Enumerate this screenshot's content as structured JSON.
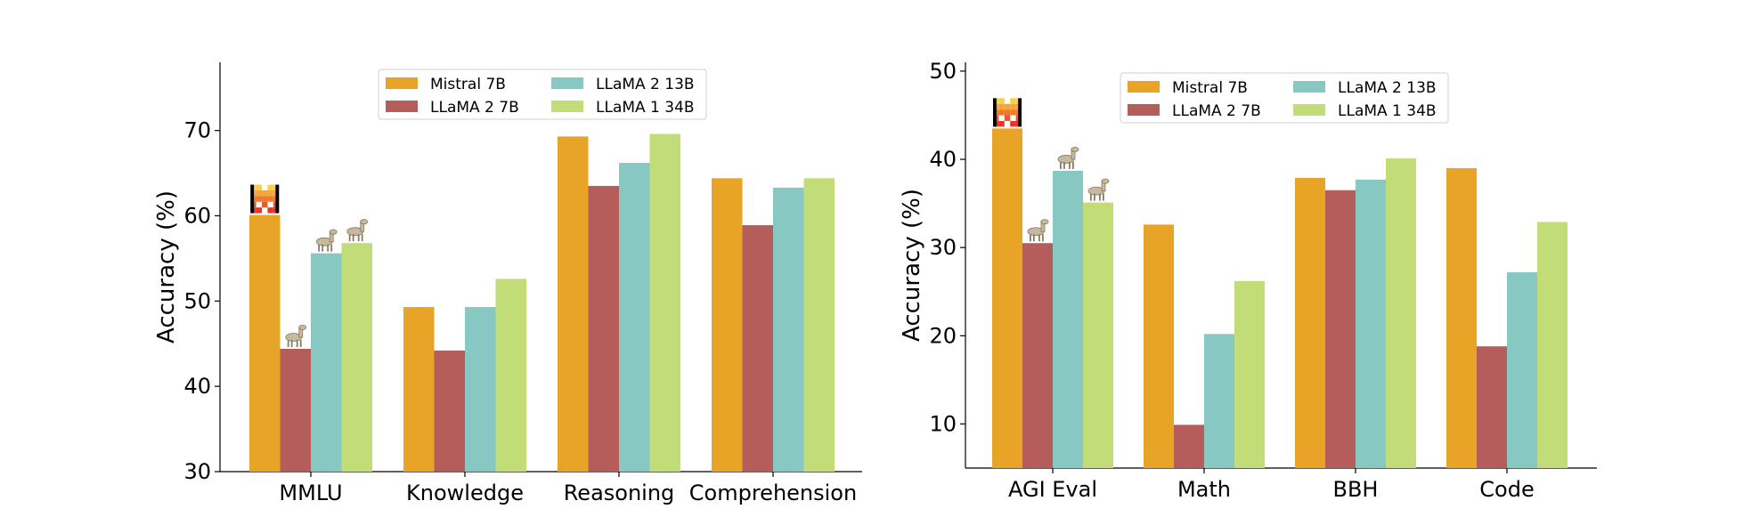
{
  "chart_data": [
    {
      "type": "bar",
      "categories": [
        "MMLU",
        "Knowledge",
        "Reasoning",
        "Comprehension"
      ],
      "ylabel": "Accuracy (%)",
      "xlabel": "",
      "ylim": [
        30,
        78
      ],
      "yticks": [
        30,
        40,
        50,
        60,
        70
      ],
      "legend_position": "top-center",
      "series": [
        {
          "name": "Mistral 7B",
          "color": "#E8A427",
          "values": [
            60.1,
            49.3,
            69.3,
            64.4
          ]
        },
        {
          "name": "LLaMA 2 7B",
          "color": "#B55D5B",
          "values": [
            44.4,
            44.2,
            63.5,
            58.9
          ]
        },
        {
          "name": "LLaMA 2 13B",
          "color": "#88C8C2",
          "values": [
            55.6,
            49.3,
            66.2,
            63.3
          ]
        },
        {
          "name": "LLaMA 1 34B",
          "color": "#C2DC77",
          "values": [
            56.8,
            52.6,
            69.6,
            64.4
          ]
        }
      ],
      "icons": [
        {
          "category": "MMLU",
          "series": "Mistral 7B",
          "icon": "mistral-logo-icon"
        },
        {
          "category": "MMLU",
          "series": "LLaMA 2 7B",
          "icon": "llama-icon"
        },
        {
          "category": "MMLU",
          "series": "LLaMA 2 13B",
          "icon": "llama-icon"
        },
        {
          "category": "MMLU",
          "series": "LLaMA 1 34B",
          "icon": "llama-icon"
        }
      ]
    },
    {
      "type": "bar",
      "categories": [
        "AGI Eval",
        "Math",
        "BBH",
        "Code"
      ],
      "ylabel": "Accuracy (%)",
      "xlabel": "",
      "ylim": [
        5,
        51
      ],
      "yticks": [
        10,
        20,
        30,
        40,
        50
      ],
      "legend_position": "top-center",
      "series": [
        {
          "name": "Mistral 7B",
          "color": "#E8A427",
          "values": [
            43.5,
            32.6,
            37.9,
            39.0
          ]
        },
        {
          "name": "LLaMA 2 7B",
          "color": "#B55D5B",
          "values": [
            30.5,
            9.9,
            36.5,
            18.8
          ]
        },
        {
          "name": "LLaMA 2 13B",
          "color": "#88C8C2",
          "values": [
            38.7,
            20.2,
            37.7,
            27.2
          ]
        },
        {
          "name": "LLaMA 1 34B",
          "color": "#C2DC77",
          "values": [
            35.1,
            26.2,
            40.1,
            32.9
          ]
        }
      ],
      "icons": [
        {
          "category": "AGI Eval",
          "series": "Mistral 7B",
          "icon": "mistral-logo-icon"
        },
        {
          "category": "AGI Eval",
          "series": "LLaMA 2 7B",
          "icon": "llama-icon"
        },
        {
          "category": "AGI Eval",
          "series": "LLaMA 2 13B",
          "icon": "llama-icon"
        },
        {
          "category": "AGI Eval",
          "series": "LLaMA 1 34B",
          "icon": "llama-icon"
        }
      ]
    }
  ]
}
